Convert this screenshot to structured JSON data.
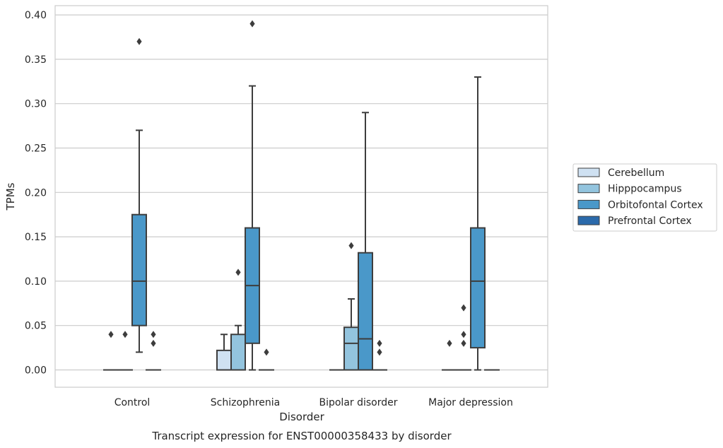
{
  "chart_data": {
    "type": "box",
    "title": "",
    "caption": "Transcript expression for ENST00000358433 by disorder",
    "xlabel": "Disorder",
    "ylabel": "TPMs",
    "ylim": [
      -0.019,
      0.41
    ],
    "y_ticks": [
      "0.00",
      "0.05",
      "0.10",
      "0.15",
      "0.20",
      "0.25",
      "0.30",
      "0.35",
      "0.40"
    ],
    "grid": "horizontal",
    "legend_position": "right",
    "categories": [
      "Control",
      "Schizophrenia",
      "Bipolar disorder",
      "Major depression"
    ],
    "series": [
      {
        "name": "Cerebellum",
        "color": "#cfe1f2",
        "boxes": [
          {
            "q1": 0.0,
            "median": 0.0,
            "q3": 0.0,
            "whisker_low": 0.0,
            "whisker_high": 0.0,
            "outliers": [
              0.04
            ]
          },
          {
            "q1": 0.0,
            "median": 0.0,
            "q3": 0.022,
            "whisker_low": 0.0,
            "whisker_high": 0.04,
            "outliers": []
          },
          {
            "q1": 0.0,
            "median": 0.0,
            "q3": 0.0,
            "whisker_low": 0.0,
            "whisker_high": 0.0,
            "outliers": []
          },
          {
            "q1": 0.0,
            "median": 0.0,
            "q3": 0.0,
            "whisker_low": 0.0,
            "whisker_high": 0.0,
            "outliers": [
              0.03
            ]
          }
        ]
      },
      {
        "name": "Hipppocampus",
        "color": "#93c4de",
        "boxes": [
          {
            "q1": 0.0,
            "median": 0.0,
            "q3": 0.0,
            "whisker_low": 0.0,
            "whisker_high": 0.0,
            "outliers": [
              0.04
            ]
          },
          {
            "q1": 0.0,
            "median": 0.0,
            "q3": 0.04,
            "whisker_low": 0.0,
            "whisker_high": 0.05,
            "outliers": [
              0.11
            ]
          },
          {
            "q1": 0.0,
            "median": 0.03,
            "q3": 0.048,
            "whisker_low": 0.0,
            "whisker_high": 0.08,
            "outliers": [
              0.14
            ]
          },
          {
            "q1": 0.0,
            "median": 0.0,
            "q3": 0.0,
            "whisker_low": 0.0,
            "whisker_high": 0.0,
            "outliers": [
              0.03,
              0.04,
              0.07
            ]
          }
        ]
      },
      {
        "name": "Orbitofontal Cortex",
        "color": "#4a98c9",
        "boxes": [
          {
            "q1": 0.05,
            "median": 0.1,
            "q3": 0.175,
            "whisker_low": 0.02,
            "whisker_high": 0.27,
            "outliers": [
              0.37
            ]
          },
          {
            "q1": 0.03,
            "median": 0.095,
            "q3": 0.16,
            "whisker_low": 0.0,
            "whisker_high": 0.32,
            "outliers": [
              0.39
            ]
          },
          {
            "q1": 0.0,
            "median": 0.035,
            "q3": 0.132,
            "whisker_low": 0.0,
            "whisker_high": 0.29,
            "outliers": []
          },
          {
            "q1": 0.025,
            "median": 0.1,
            "q3": 0.16,
            "whisker_low": 0.0,
            "whisker_high": 0.33,
            "outliers": []
          }
        ]
      },
      {
        "name": "Prefrontal Cortex",
        "color": "#2b6aab",
        "boxes": [
          {
            "q1": 0.0,
            "median": 0.0,
            "q3": 0.0,
            "whisker_low": 0.0,
            "whisker_high": 0.0,
            "outliers": [
              0.03,
              0.04
            ]
          },
          {
            "q1": 0.0,
            "median": 0.0,
            "q3": 0.0,
            "whisker_low": 0.0,
            "whisker_high": 0.0,
            "outliers": [
              0.02
            ]
          },
          {
            "q1": 0.0,
            "median": 0.0,
            "q3": 0.0,
            "whisker_low": 0.0,
            "whisker_high": 0.0,
            "outliers": [
              0.02,
              0.03
            ]
          },
          {
            "q1": 0.0,
            "median": 0.0,
            "q3": 0.0,
            "whisker_low": 0.0,
            "whisker_high": 0.0,
            "outliers": []
          }
        ]
      }
    ]
  }
}
